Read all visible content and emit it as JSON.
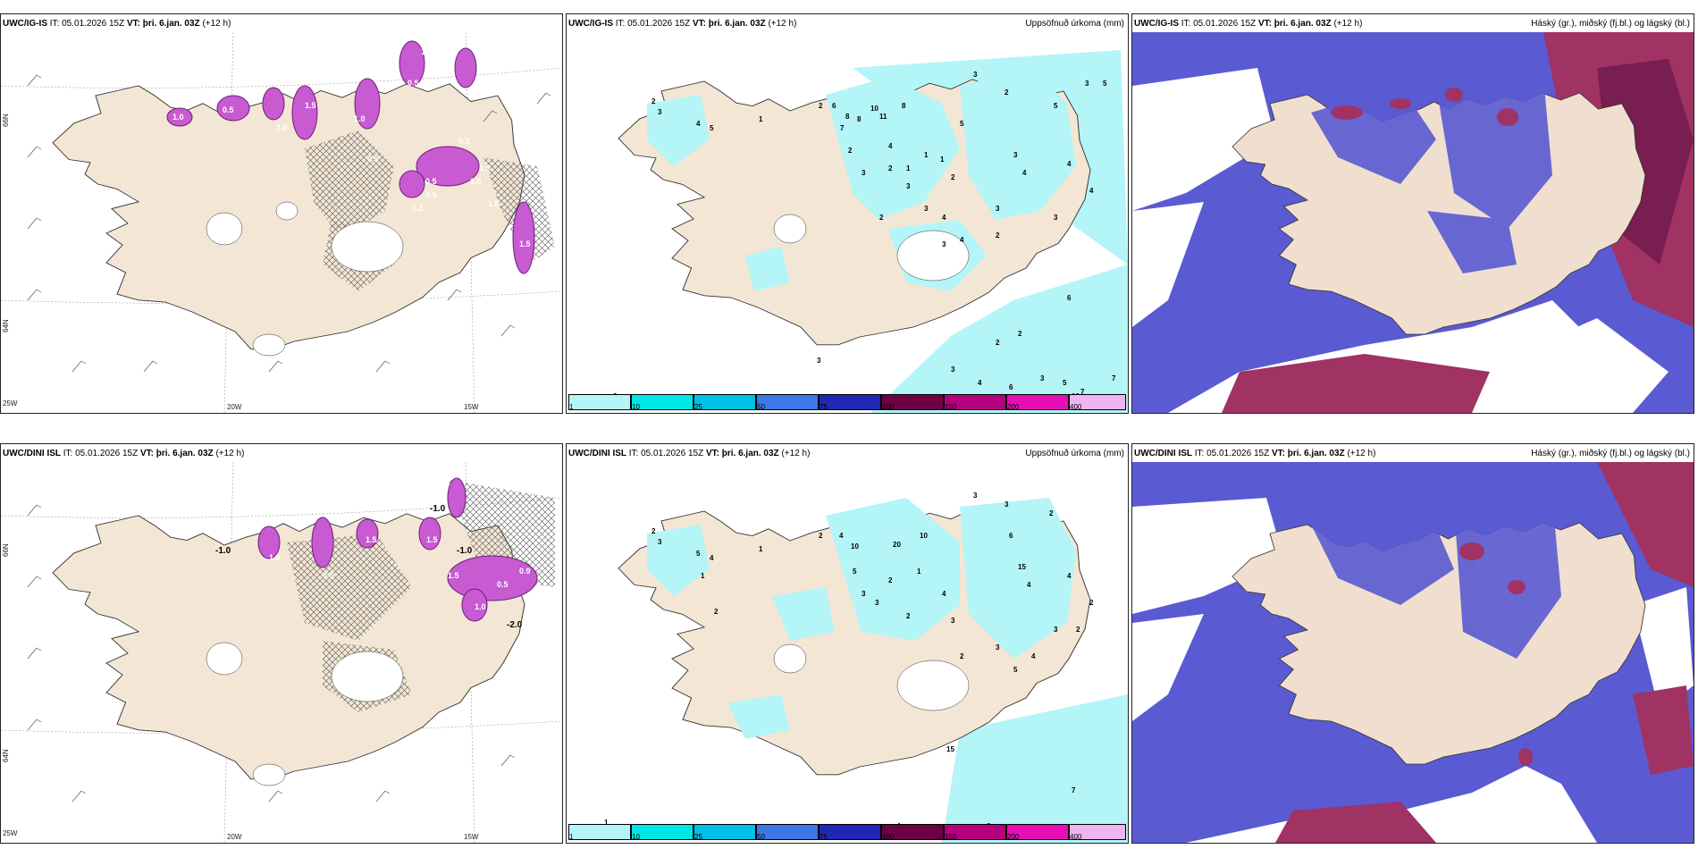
{
  "rows": [
    {
      "model": "UWC/IG-IS",
      "it_label": "IT:",
      "it_value": "05.01.2026 15Z",
      "vt_label": "VT:",
      "vt_value": "þri. 6.jan. 03Z",
      "lead": "(+12 h)"
    },
    {
      "model": "UWC/DINI ISL",
      "it_label": "IT:",
      "it_value": "05.01.2026 15Z",
      "vt_label": "VT:",
      "vt_value": "þri. 6.jan. 03Z",
      "lead": "(+12 h)"
    }
  ],
  "precip_title": "Uppsöfnuð úrkoma (mm)",
  "cloud_title": "Háský (gr.), miðský (fj.bl.) og lágský (bl.)",
  "axis_labels": {
    "lat66": "66N",
    "lat64": "64N",
    "lon25": "25W",
    "lon20": "20W",
    "lon15": "15W"
  },
  "colorbar": {
    "ticks": [
      "1",
      "10",
      "25",
      "50",
      "75",
      "100",
      "150",
      "200",
      "400"
    ],
    "colors": [
      "#b4f5f5",
      "#00e6e6",
      "#00c0e8",
      "#3c78e6",
      "#2028b4",
      "#6e0046",
      "#b4007c",
      "#e60eb4",
      "#f0b4f0"
    ]
  },
  "colors": {
    "land": "#f3e6d4",
    "cyan_precip": "#b4f5f8",
    "magenta_field": "#c85ad2",
    "high_cloud_blue": "#5a5ad2",
    "mid_cloud_red": "#a03264",
    "dark_cloud": "#781e50"
  },
  "labels": {
    "top_left": [
      "1.0",
      "0.5",
      "2.0",
      "1.5",
      "1.0",
      "0.5",
      "0.5",
      "1.0",
      "0.5",
      "1.0",
      "0.5",
      "1.0",
      "0.3",
      "1.5",
      "0.5",
      "0.5",
      "1.5"
    ],
    "bottom_left": [
      "-1.0",
      "-1.0",
      "-1.0",
      "-2.0",
      "1.5",
      "1.0",
      "1.5",
      "0.5",
      "1.0",
      "0.5",
      "1.5",
      "0.9"
    ],
    "top_precip": [
      "2",
      "3",
      "4",
      "5",
      "1",
      "2",
      "6",
      "8",
      "8",
      "7",
      "10",
      "11",
      "8",
      "4",
      "2",
      "3",
      "2",
      "1",
      "1",
      "3",
      "1",
      "2",
      "3",
      "4",
      "2",
      "3",
      "5",
      "3",
      "2",
      "3",
      "4",
      "2",
      "4",
      "3",
      "3",
      "4",
      "5",
      "3",
      "6",
      "4",
      "2",
      "3",
      "5",
      "2",
      "3",
      "4",
      "6",
      "5",
      "7",
      "10",
      "7",
      "3",
      "2"
    ],
    "bottom_precip": [
      "2",
      "3",
      "5",
      "4",
      "1",
      "2",
      "4",
      "10",
      "20",
      "10",
      "5",
      "3",
      "2",
      "1",
      "3",
      "4",
      "2",
      "3",
      "15",
      "6",
      "4",
      "3",
      "2",
      "3",
      "3",
      "2",
      "4",
      "3",
      "2",
      "4",
      "5",
      "2",
      "1",
      "2",
      "1",
      "7",
      "6",
      "1",
      "15"
    ]
  }
}
